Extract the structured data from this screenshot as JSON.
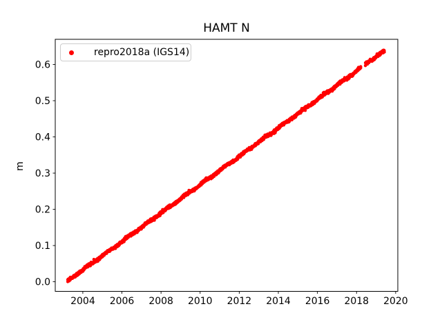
{
  "figure": {
    "title": "HAMT N",
    "background": "#ffffff"
  },
  "axes": {
    "ylabel": "m",
    "frame_color": "#000000",
    "tick_color": "#000000",
    "xlim": [
      2002.59,
      2020.11
    ],
    "ylim": [
      -0.0265,
      0.6695
    ],
    "x_ticks": {
      "values": [
        2004,
        2006,
        2008,
        2010,
        2012,
        2014,
        2016,
        2018,
        2020
      ],
      "labels": [
        "2004",
        "2006",
        "2008",
        "2010",
        "2012",
        "2014",
        "2016",
        "2018",
        "2020"
      ]
    },
    "y_ticks": {
      "values": [
        0.0,
        0.1,
        0.2,
        0.3,
        0.4,
        0.5,
        0.6
      ],
      "labels": [
        "0.0",
        "0.1",
        "0.2",
        "0.3",
        "0.4",
        "0.5",
        "0.6"
      ]
    }
  },
  "legend": {
    "position": "upper-left",
    "entries": [
      {
        "label": "repro2018a (IGS14)",
        "marker": "dot",
        "color": "#ff0000"
      }
    ]
  },
  "chart_data": {
    "type": "scatter",
    "title": "HAMT N",
    "xlabel": "",
    "ylabel": "m",
    "xlim": [
      2002.59,
      2020.11
    ],
    "ylim": [
      -0.0265,
      0.6695
    ],
    "grid": false,
    "legend_position": "upper left",
    "series": [
      {
        "name": "repro2018a (IGS14)",
        "color": "#ff0000",
        "marker": "point",
        "marker_diameter_px": 4.4,
        "trend": {
          "start": [
            2003.22,
            0.002
          ],
          "end": [
            2019.43,
            0.638
          ],
          "slope_m_per_yr": 0.0392
        },
        "points": [
          [
            2003.22,
            0.002
          ],
          [
            2003.5,
            0.013
          ],
          [
            2004.0,
            0.033
          ],
          [
            2004.5,
            0.052
          ],
          [
            2005.0,
            0.072
          ],
          [
            2005.5,
            0.091
          ],
          [
            2006.0,
            0.111
          ],
          [
            2006.5,
            0.131
          ],
          [
            2007.0,
            0.15
          ],
          [
            2007.5,
            0.17
          ],
          [
            2008.0,
            0.19
          ],
          [
            2008.5,
            0.209
          ],
          [
            2009.0,
            0.229
          ],
          [
            2009.5,
            0.248
          ],
          [
            2010.0,
            0.268
          ],
          [
            2010.5,
            0.288
          ],
          [
            2011.0,
            0.307
          ],
          [
            2011.5,
            0.327
          ],
          [
            2012.0,
            0.346
          ],
          [
            2012.5,
            0.366
          ],
          [
            2013.0,
            0.386
          ],
          [
            2013.5,
            0.405
          ],
          [
            2014.0,
            0.425
          ],
          [
            2014.5,
            0.444
          ],
          [
            2015.0,
            0.464
          ],
          [
            2015.5,
            0.484
          ],
          [
            2016.0,
            0.503
          ],
          [
            2016.5,
            0.523
          ],
          [
            2017.0,
            0.543
          ],
          [
            2017.5,
            0.562
          ],
          [
            2018.0,
            0.582
          ],
          [
            2018.5,
            0.601
          ],
          [
            2019.0,
            0.621
          ],
          [
            2019.43,
            0.638
          ]
        ],
        "gaps": [
          [
            2018.23,
            2018.45
          ],
          [
            2018.72,
            2018.78
          ]
        ],
        "segment_offsets": [
          {
            "range": [
              2018.45,
              2018.73
            ],
            "dy": 0.003
          }
        ],
        "scatter_sigma_m": 0.002,
        "annual_wiggle": {
          "amp": 0.0015,
          "period": 1.0
        }
      }
    ]
  }
}
